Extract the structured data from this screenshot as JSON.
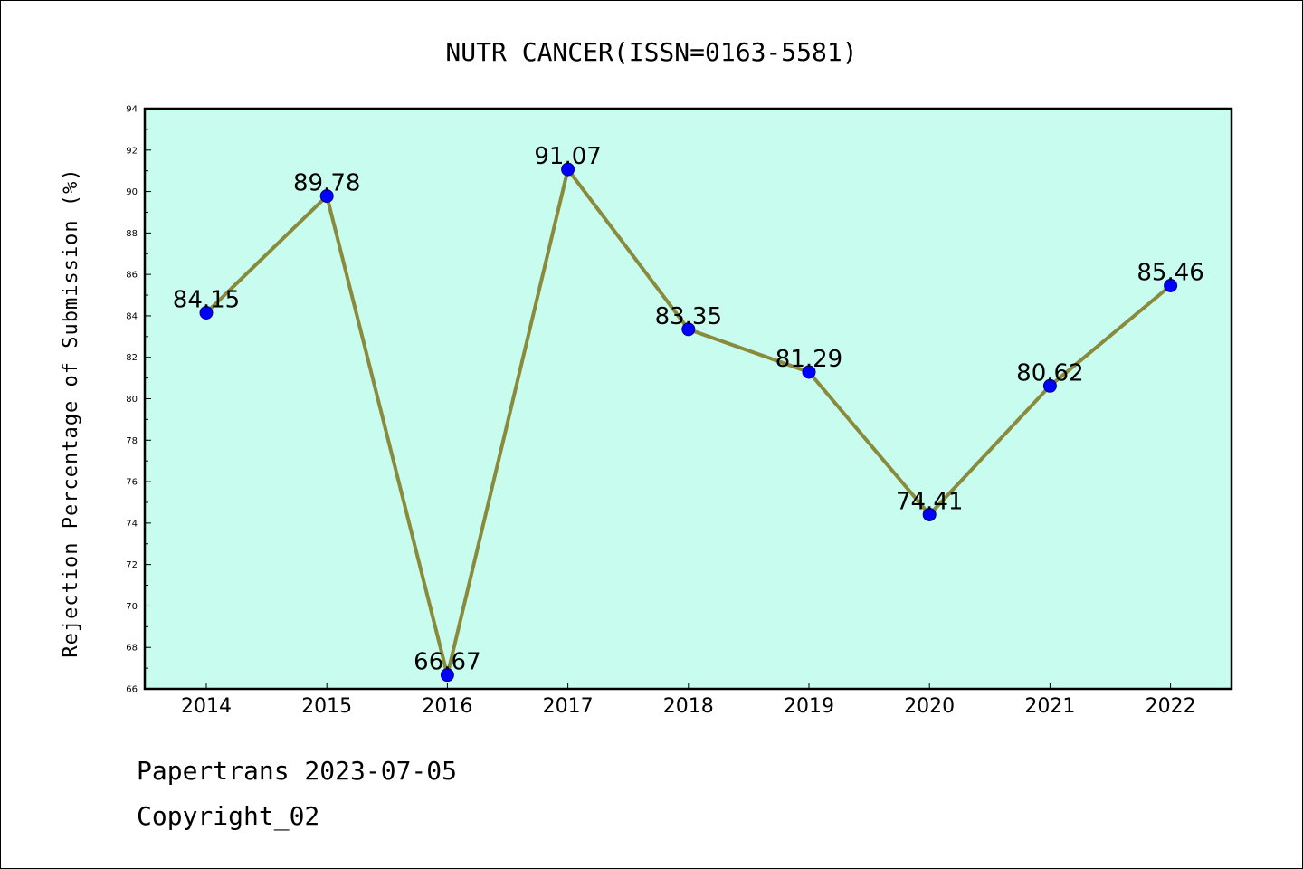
{
  "chart_data": {
    "type": "line",
    "title": "NUTR CANCER(ISSN=0163-5581)",
    "xlabel": "",
    "ylabel": "Rejection Percentage of Submission (%)",
    "categories": [
      "2014",
      "2015",
      "2016",
      "2017",
      "2018",
      "2019",
      "2020",
      "2021",
      "2022"
    ],
    "values": [
      84.15,
      89.78,
      66.67,
      91.07,
      83.35,
      81.29,
      74.41,
      80.62,
      85.46
    ],
    "value_labels": [
      "84.15",
      "89.78",
      "66.67",
      "91.07",
      "83.35",
      "81.29",
      "74.41",
      "80.62",
      "85.46"
    ],
    "ylim": [
      66,
      94
    ],
    "yticks": [
      66,
      68,
      70,
      72,
      74,
      76,
      78,
      80,
      82,
      84,
      86,
      88,
      90,
      92,
      94
    ],
    "grid": false,
    "legend": "none",
    "colors": {
      "plot_background": "#c8fcee",
      "line": "#8a8a3c",
      "marker": "#0000ff"
    }
  },
  "footer": {
    "line1": "Papertrans 2023-07-05",
    "line2": "Copyright_02"
  }
}
